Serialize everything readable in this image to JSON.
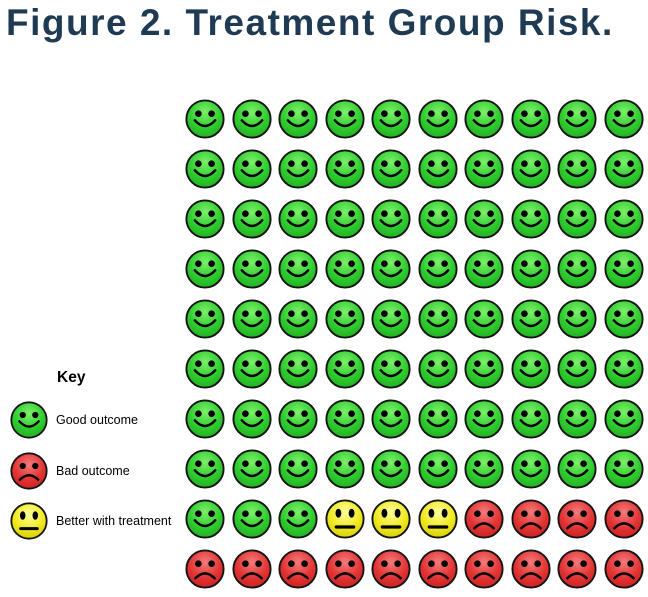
{
  "title": "Figure 2. Treatment Group Risk.",
  "title_color": "#1f3b54",
  "key": {
    "heading": "Key",
    "items": [
      {
        "face": "G",
        "label": "Good outcome"
      },
      {
        "face": "R",
        "label": "Bad outcome"
      },
      {
        "face": "Y",
        "label": "Better with treatment"
      }
    ]
  },
  "face_styles": {
    "G": {
      "name": "green-smiley",
      "highlight": "#7df06a",
      "mid": "#2ecc2e",
      "edge": "#1fa51f",
      "mouth": "smile",
      "eyes": "round"
    },
    "R": {
      "name": "red-frowny",
      "highlight": "#f47b7b",
      "mid": "#e23333",
      "edge": "#c11d1d",
      "mouth": "frown",
      "eyes": "round"
    },
    "Y": {
      "name": "yellow-neutral",
      "highlight": "#ffff9e",
      "mid": "#efe81e",
      "edge": "#cfc700",
      "mouth": "line",
      "eyes": "oval"
    }
  },
  "chart_data": {
    "type": "icon-array",
    "title": "Figure 2. Treatment Group Risk.",
    "rows": 10,
    "cols": 10,
    "total_icons": 100,
    "grid": [
      "GGGGGGGGGG",
      "GGGGGGGGGG",
      "GGGGGGGGGG",
      "GGGGGGGGGG",
      "GGGGGGGGGG",
      "GGGGGGGGGG",
      "GGGGGGGGGG",
      "GGGGGGGGGG",
      "GGGYYYRRRR",
      "RRRRRRRRRR"
    ],
    "categories": {
      "G": "Good outcome",
      "Y": "Better with treatment",
      "R": "Bad outcome"
    },
    "counts": {
      "good_outcome": 83,
      "better_with_treatment": 3,
      "bad_outcome": 14
    },
    "legend_position": "left",
    "legend_entries": [
      "Good outcome",
      "Bad outcome",
      "Better with treatment"
    ]
  }
}
